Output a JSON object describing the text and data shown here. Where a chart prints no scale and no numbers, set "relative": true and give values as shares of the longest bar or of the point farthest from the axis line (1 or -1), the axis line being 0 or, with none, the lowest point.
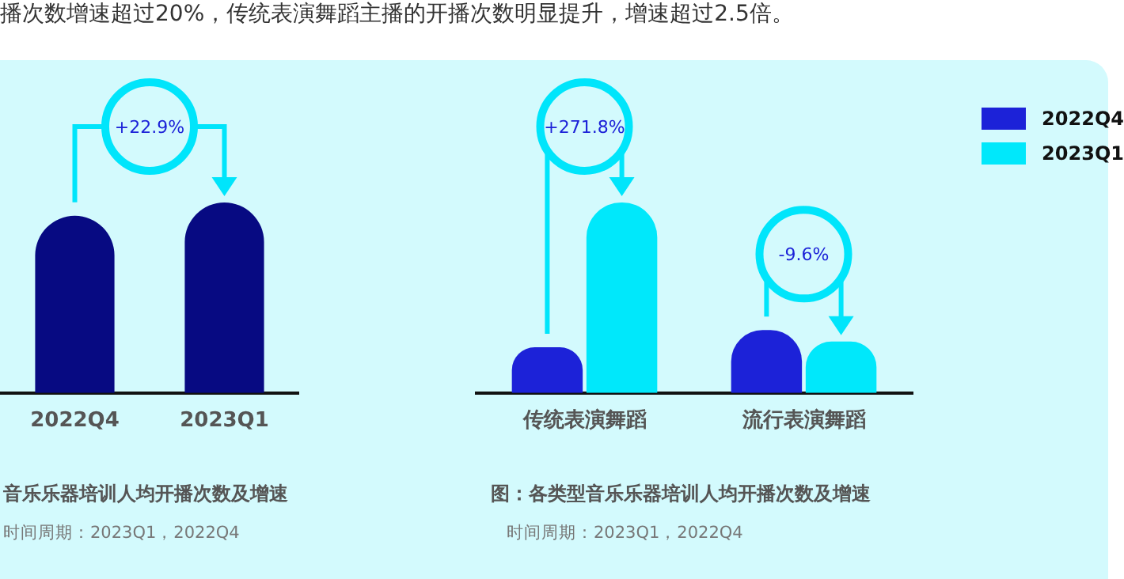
{
  "chart_data": [
    {
      "type": "bar",
      "title": "音乐乐器培训人均开播次数及增速",
      "subtitle": "播次数增速超过20%，传统表演舞蹈主播的开播次数明显提升，增速超过2.5倍。",
      "categories": [
        "2022Q4",
        "2023Q1"
      ],
      "values": [
        0.93,
        1
      ],
      "color": "#070a82",
      "relative": true,
      "grid": false,
      "legend": false,
      "annotations": [
        "+22.9%",
        "时间周期：2023Q1，2022Q4"
      ]
    },
    {
      "type": "bar",
      "title": "图：各类型音乐乐器培训人均开播次数及增速",
      "categories": [
        "传统表演舞蹈",
        "流行表演舞蹈"
      ],
      "series": [
        {
          "name": "2022Q4",
          "color": "#1c22d8",
          "values": [
            0.24,
            0.33
          ]
        },
        {
          "name": "2023Q1",
          "color": "#00e8fb",
          "values": [
            1,
            0.27
          ]
        }
      ],
      "relative": true,
      "grid": false,
      "legend": "top right",
      "annotations": [
        "+271.8%",
        "-9.6%",
        "时间周期：2023Q1，2022Q4"
      ]
    }
  ]
}
